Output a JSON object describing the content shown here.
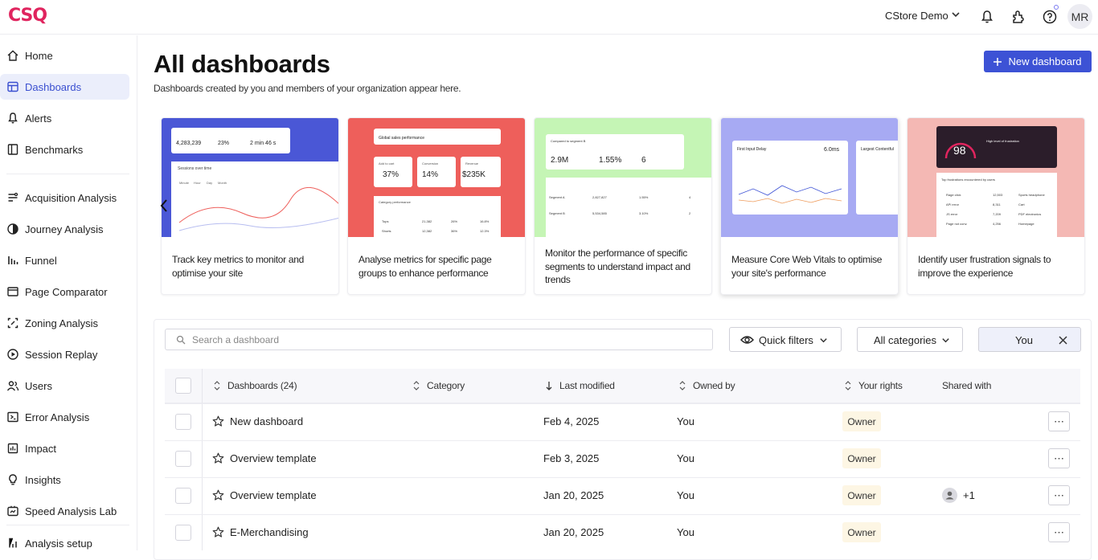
{
  "app": {
    "logo": "CSQ",
    "org_name": "CStore Demo",
    "user_initials": "MR"
  },
  "colors": {
    "accent": "#3d52d5",
    "brand": "#e0245e"
  },
  "sidebar": {
    "items": [
      {
        "label": "Home",
        "icon": "home-icon"
      },
      {
        "label": "Dashboards",
        "icon": "dashboard-icon",
        "active": true
      },
      {
        "label": "Alerts",
        "icon": "bell-icon"
      },
      {
        "label": "Benchmarks",
        "icon": "benchmark-icon"
      },
      {
        "label": "Acquisition Analysis",
        "icon": "acquisition-icon"
      },
      {
        "label": "Journey Analysis",
        "icon": "journey-icon"
      },
      {
        "label": "Funnel",
        "icon": "funnel-icon"
      },
      {
        "label": "Page Comparator",
        "icon": "comparator-icon"
      },
      {
        "label": "Zoning Analysis",
        "icon": "zoning-icon"
      },
      {
        "label": "Session Replay",
        "icon": "play-icon"
      },
      {
        "label": "Users",
        "icon": "users-icon"
      },
      {
        "label": "Error Analysis",
        "icon": "error-icon"
      },
      {
        "label": "Impact",
        "icon": "impact-icon"
      },
      {
        "label": "Insights",
        "icon": "bulb-icon"
      },
      {
        "label": "Speed Analysis Lab",
        "icon": "speed-icon"
      },
      {
        "label": "Analysis setup",
        "icon": "setup-icon"
      }
    ]
  },
  "page": {
    "title": "All dashboards",
    "subtitle": "Dashboards created by you and members of your organization appear here.",
    "new_button": "New dashboard"
  },
  "cards": [
    {
      "text": "Track key metrics to monitor and optimise your site",
      "color": "#4a57d6"
    },
    {
      "text": "Analyse metrics for specific page groups to enhance performance",
      "color": "#ee5f5b"
    },
    {
      "text": "Monitor the performance of specific segments to understand impact and trends",
      "color": "#c5f5b5"
    },
    {
      "text": "Measure Core Web Vitals to optimise your site's performance",
      "color": "#a7aaf3"
    },
    {
      "text": "Identify user frustration signals to improve the experience",
      "color": "#f4b8b4"
    }
  ],
  "card_preview": {
    "c1": {
      "m1": "4,283,239",
      "m2": "23%",
      "m3": "2 min 46 s",
      "chart_title": "Sessions over time",
      "tabs": [
        "Minute",
        "Hour",
        "Day",
        "Month"
      ]
    },
    "c2": {
      "title": "Global sales performance",
      "v1": "37%",
      "v2": "14%",
      "v3": "$235K",
      "l1": "Add to cart",
      "l2": "Conversion",
      "l3": "Revenue",
      "sub": "Category performance",
      "rows": [
        [
          "Tops",
          "21,382",
          "26%",
          "16.8%"
        ],
        [
          "Shorts",
          "12,382",
          "36%",
          "12.3%"
        ]
      ]
    },
    "c3": {
      "title": "Compared to segment B",
      "v1": "2.9M",
      "v2": "1.55%",
      "v3": "6",
      "rows": [
        [
          "Segment A",
          "2,827,827",
          "1.55%",
          "4"
        ],
        [
          "Segment B",
          "5,534,585",
          "3.10%",
          "2"
        ]
      ]
    },
    "c4": {
      "title": "First Input Delay",
      "value": "6.0ms",
      "title2": "Largest Contentful"
    },
    "c5": {
      "value": "98",
      "label": "High level of frustration",
      "sub": "Top frustrations encountered by users",
      "rows": [
        [
          "Rage click",
          "12,503",
          "Sports headphone"
        ],
        [
          "API error",
          "8,311",
          "Cart"
        ],
        [
          "JS error",
          "7,209",
          "PDF electronics"
        ],
        [
          "Page not conv.",
          "4,256",
          "Homepage"
        ]
      ]
    }
  },
  "filters": {
    "search_placeholder": "Search a dashboard",
    "quick_filters": "Quick filters",
    "categories": "All categories",
    "owner_filter": "You"
  },
  "table": {
    "columns": [
      "Dashboards (24)",
      "Category",
      "Last modified",
      "Owned by",
      "Your rights",
      "Shared with"
    ],
    "rows": [
      {
        "name": "New dashboard",
        "category": "",
        "modified": "Feb 4, 2025",
        "owner": "You",
        "rights": "Owner",
        "shared": ""
      },
      {
        "name": "Overview template",
        "category": "",
        "modified": "Feb 3, 2025",
        "owner": "You",
        "rights": "Owner",
        "shared": ""
      },
      {
        "name": "Overview template",
        "category": "",
        "modified": "Jan 20, 2025",
        "owner": "You",
        "rights": "Owner",
        "shared": "+1"
      },
      {
        "name": "E-Merchandising",
        "category": "",
        "modified": "Jan 20, 2025",
        "owner": "You",
        "rights": "Owner",
        "shared": ""
      }
    ],
    "more_label": "⋯"
  }
}
